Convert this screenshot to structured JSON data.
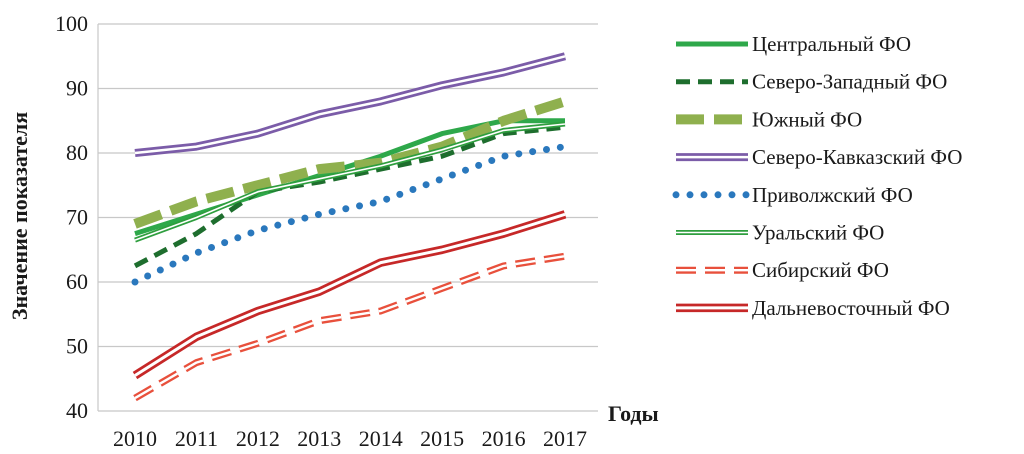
{
  "chart_data": {
    "type": "line",
    "title": "",
    "xlabel": "Годы",
    "ylabel": "Значение показателя",
    "x": [
      "2010",
      "2011",
      "2012",
      "2013",
      "2014",
      "2015",
      "2016",
      "2017"
    ],
    "ylim": [
      40,
      100
    ],
    "yticks": [
      "40",
      "50",
      "60",
      "70",
      "80",
      "90",
      "100"
    ],
    "grid": "horizontal",
    "legend": "right",
    "series": [
      {
        "name": "Центральный ФО",
        "color": "#2ea84a",
        "style": "solid-thick",
        "values": [
          67.5,
          70.5,
          73.5,
          76.5,
          79.5,
          83,
          85,
          85
        ]
      },
      {
        "name": "Северо-Западный ФО",
        "color": "#1e6e2e",
        "style": "dashed",
        "values": [
          62.5,
          67.5,
          74,
          75.5,
          77.5,
          79.5,
          83,
          84
        ]
      },
      {
        "name": "Южный ФО",
        "color": "#8fb04e",
        "style": "dashed-wide",
        "values": [
          69,
          72.5,
          75,
          77.5,
          78.5,
          81,
          85,
          88
        ]
      },
      {
        "name": "Северо-Кавказский ФО",
        "color": "#7b5ca8",
        "style": "double",
        "values": [
          80,
          81,
          83,
          86,
          88,
          90.5,
          92.5,
          95
        ]
      },
      {
        "name": "Приволжский ФО",
        "color": "#2a78bd",
        "style": "dotted",
        "values": [
          60,
          64.5,
          68,
          70.5,
          72.5,
          76,
          79.5,
          81
        ]
      },
      {
        "name": "Уральский ФО",
        "color": "#2e9e3e",
        "style": "double-thin",
        "values": [
          66.5,
          70,
          74,
          76,
          78,
          80.5,
          83.5,
          84.5
        ]
      },
      {
        "name": "Сибирский ФО",
        "color": "#e8503c",
        "style": "double-dashed",
        "values": [
          42,
          47.5,
          50.5,
          54,
          55.5,
          59,
          62.5,
          64
        ]
      },
      {
        "name": "Дальневосточный ФО",
        "color": "#c62828",
        "style": "double-thick",
        "values": [
          45.5,
          51.5,
          55.5,
          58.5,
          63,
          65,
          67.5,
          70.5
        ]
      }
    ]
  }
}
